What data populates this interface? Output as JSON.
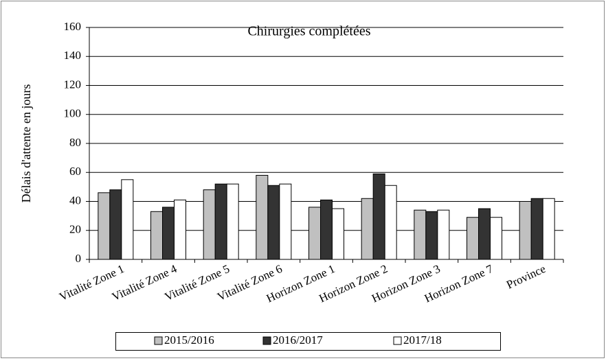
{
  "chart_data": {
    "type": "bar",
    "title": "Chirurgies complétées",
    "y_label": "Délais d'attente en jours",
    "categories": [
      "Vitalité Zone 1",
      "Vitalité Zone 4",
      "Vitalité Zone 5",
      "Vitalité Zone 6",
      "Horizon Zone 1",
      "Horizon Zone 2",
      "Horizon Zone 3",
      "Horizon Zone 7",
      "Province"
    ],
    "series": [
      {
        "name": "2015/2016",
        "color": "#c0c0c0",
        "values": [
          46,
          33,
          48,
          58,
          36,
          42,
          34,
          29,
          40
        ]
      },
      {
        "name": "2016/2017",
        "color": "#333333",
        "values": [
          48,
          36,
          52,
          51,
          41,
          59,
          33,
          35,
          42
        ]
      },
      {
        "name": "2017/18",
        "color": "#ffffff",
        "values": [
          55,
          41,
          52,
          52,
          35,
          51,
          34,
          29,
          42
        ]
      }
    ],
    "ylim": [
      0,
      160
    ],
    "yticks": [
      0,
      20,
      40,
      60,
      80,
      100,
      120,
      140,
      160
    ],
    "grid": true,
    "legend": "bottom"
  }
}
